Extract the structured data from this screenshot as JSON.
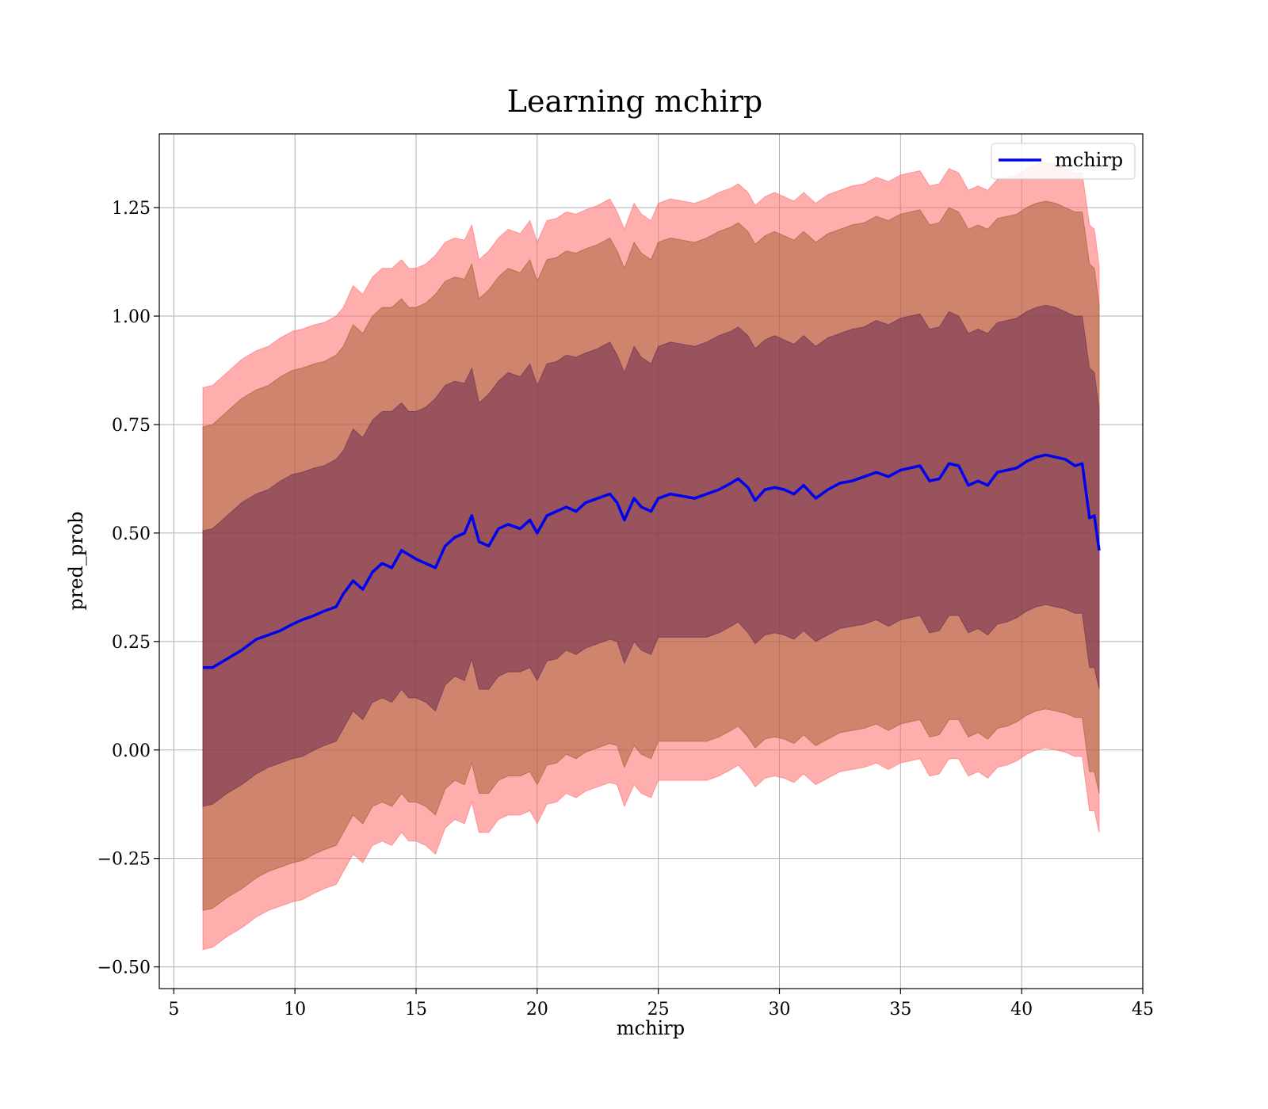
{
  "chart_data": {
    "type": "line",
    "title": "Learning mchirp",
    "xlabel": "mchirp",
    "ylabel": "pred_prob",
    "xlim": [
      4.4,
      45.0
    ],
    "ylim": [
      -0.55,
      1.42
    ],
    "xticks": [
      5,
      10,
      15,
      20,
      25,
      30,
      35,
      40,
      45
    ],
    "yticks": [
      -0.5,
      -0.25,
      0.0,
      0.25,
      0.5,
      0.75,
      1.0,
      1.25
    ],
    "ytick_labels": [
      "−0.50",
      "−0.25",
      "0.00",
      "0.25",
      "0.50",
      "0.75",
      "1.00",
      "1.25"
    ],
    "grid": true,
    "legend": {
      "position": "top-right",
      "entries": [
        "mchirp"
      ]
    },
    "series": [
      {
        "name": "mchirp",
        "color": "#0000ee",
        "x": [
          6.2,
          6.6,
          7.2,
          7.8,
          8.4,
          8.9,
          9.4,
          9.9,
          10.3,
          10.8,
          11.2,
          11.7,
          12.0,
          12.4,
          12.8,
          13.2,
          13.6,
          14.0,
          14.4,
          14.7,
          15.0,
          15.4,
          15.8,
          16.2,
          16.6,
          17.0,
          17.3,
          17.6,
          18.0,
          18.4,
          18.8,
          19.3,
          19.7,
          20.0,
          20.4,
          20.8,
          21.2,
          21.6,
          22.0,
          22.5,
          23.0,
          23.3,
          23.6,
          24.0,
          24.3,
          24.7,
          25.0,
          25.5,
          26.0,
          26.5,
          27.0,
          27.5,
          28.0,
          28.3,
          28.7,
          29.0,
          29.4,
          29.8,
          30.2,
          30.6,
          31.0,
          31.5,
          32.0,
          32.5,
          33.0,
          33.5,
          34.0,
          34.5,
          35.0,
          35.4,
          35.8,
          36.2,
          36.6,
          37.0,
          37.4,
          37.8,
          38.2,
          38.6,
          39.0,
          39.4,
          39.8,
          40.2,
          40.6,
          41.0,
          41.4,
          41.8,
          42.2,
          42.5,
          42.8,
          43.0,
          43.2
        ],
        "y": [
          0.19,
          0.19,
          0.21,
          0.23,
          0.255,
          0.265,
          0.275,
          0.29,
          0.3,
          0.31,
          0.32,
          0.33,
          0.36,
          0.39,
          0.37,
          0.41,
          0.43,
          0.42,
          0.46,
          0.45,
          0.44,
          0.43,
          0.42,
          0.47,
          0.49,
          0.5,
          0.54,
          0.48,
          0.47,
          0.51,
          0.52,
          0.51,
          0.53,
          0.5,
          0.54,
          0.55,
          0.56,
          0.55,
          0.57,
          0.58,
          0.59,
          0.57,
          0.53,
          0.58,
          0.56,
          0.55,
          0.58,
          0.59,
          0.585,
          0.58,
          0.59,
          0.6,
          0.615,
          0.625,
          0.605,
          0.575,
          0.6,
          0.605,
          0.6,
          0.59,
          0.61,
          0.58,
          0.6,
          0.615,
          0.62,
          0.63,
          0.64,
          0.63,
          0.645,
          0.65,
          0.655,
          0.62,
          0.625,
          0.66,
          0.655,
          0.61,
          0.62,
          0.61,
          0.64,
          0.645,
          0.65,
          0.665,
          0.675,
          0.68,
          0.675,
          0.67,
          0.655,
          0.66,
          0.535,
          0.54,
          0.46
        ]
      }
    ],
    "bands": [
      {
        "sigma": 3,
        "color": "#ff6b6b",
        "opacity": 0.55,
        "upper": [
          0.835,
          0.84,
          0.87,
          0.9,
          0.92,
          0.93,
          0.95,
          0.965,
          0.97,
          0.98,
          0.985,
          1.0,
          1.02,
          1.07,
          1.05,
          1.09,
          1.11,
          1.11,
          1.13,
          1.11,
          1.11,
          1.12,
          1.14,
          1.17,
          1.18,
          1.175,
          1.21,
          1.13,
          1.15,
          1.18,
          1.2,
          1.19,
          1.22,
          1.17,
          1.22,
          1.225,
          1.24,
          1.235,
          1.245,
          1.255,
          1.27,
          1.24,
          1.2,
          1.26,
          1.235,
          1.22,
          1.26,
          1.27,
          1.265,
          1.26,
          1.27,
          1.285,
          1.295,
          1.305,
          1.285,
          1.255,
          1.275,
          1.285,
          1.275,
          1.265,
          1.285,
          1.26,
          1.28,
          1.29,
          1.3,
          1.305,
          1.32,
          1.31,
          1.325,
          1.33,
          1.335,
          1.3,
          1.305,
          1.34,
          1.33,
          1.29,
          1.3,
          1.29,
          1.315,
          1.32,
          1.325,
          1.34,
          1.35,
          1.355,
          1.35,
          1.34,
          1.33,
          1.33,
          1.21,
          1.2,
          1.115
        ],
        "lower": [
          -0.46,
          -0.455,
          -0.43,
          -0.41,
          -0.385,
          -0.37,
          -0.36,
          -0.35,
          -0.345,
          -0.33,
          -0.32,
          -0.31,
          -0.28,
          -0.24,
          -0.26,
          -0.22,
          -0.21,
          -0.22,
          -0.19,
          -0.21,
          -0.21,
          -0.22,
          -0.24,
          -0.18,
          -0.16,
          -0.17,
          -0.12,
          -0.19,
          -0.19,
          -0.16,
          -0.15,
          -0.15,
          -0.14,
          -0.17,
          -0.125,
          -0.12,
          -0.1,
          -0.11,
          -0.095,
          -0.085,
          -0.075,
          -0.08,
          -0.13,
          -0.08,
          -0.1,
          -0.11,
          -0.07,
          -0.07,
          -0.07,
          -0.07,
          -0.07,
          -0.06,
          -0.045,
          -0.035,
          -0.06,
          -0.085,
          -0.065,
          -0.06,
          -0.065,
          -0.075,
          -0.055,
          -0.08,
          -0.065,
          -0.05,
          -0.045,
          -0.04,
          -0.03,
          -0.045,
          -0.03,
          -0.025,
          -0.02,
          -0.06,
          -0.055,
          -0.02,
          -0.02,
          -0.06,
          -0.05,
          -0.065,
          -0.04,
          -0.035,
          -0.025,
          -0.01,
          0.0,
          0.005,
          0.0,
          -0.005,
          -0.015,
          -0.015,
          -0.14,
          -0.14,
          -0.19
        ]
      },
      {
        "sigma": 2,
        "color": "#a05a2c",
        "opacity": 0.5,
        "upper": [
          0.745,
          0.75,
          0.78,
          0.81,
          0.83,
          0.84,
          0.86,
          0.875,
          0.88,
          0.89,
          0.895,
          0.91,
          0.93,
          0.98,
          0.96,
          1.0,
          1.02,
          1.02,
          1.04,
          1.02,
          1.02,
          1.03,
          1.05,
          1.08,
          1.09,
          1.085,
          1.12,
          1.04,
          1.06,
          1.09,
          1.11,
          1.1,
          1.13,
          1.08,
          1.13,
          1.135,
          1.15,
          1.145,
          1.155,
          1.165,
          1.18,
          1.15,
          1.11,
          1.17,
          1.145,
          1.13,
          1.17,
          1.18,
          1.175,
          1.17,
          1.18,
          1.195,
          1.205,
          1.215,
          1.195,
          1.165,
          1.185,
          1.195,
          1.185,
          1.175,
          1.195,
          1.17,
          1.19,
          1.2,
          1.21,
          1.215,
          1.23,
          1.22,
          1.235,
          1.24,
          1.245,
          1.21,
          1.215,
          1.25,
          1.24,
          1.2,
          1.21,
          1.2,
          1.225,
          1.23,
          1.235,
          1.25,
          1.26,
          1.265,
          1.26,
          1.25,
          1.24,
          1.24,
          1.12,
          1.11,
          1.025
        ],
        "lower": [
          -0.37,
          -0.365,
          -0.34,
          -0.32,
          -0.295,
          -0.28,
          -0.27,
          -0.26,
          -0.255,
          -0.24,
          -0.23,
          -0.22,
          -0.19,
          -0.15,
          -0.17,
          -0.13,
          -0.12,
          -0.13,
          -0.1,
          -0.12,
          -0.12,
          -0.13,
          -0.15,
          -0.09,
          -0.07,
          -0.08,
          -0.03,
          -0.1,
          -0.1,
          -0.07,
          -0.06,
          -0.06,
          -0.05,
          -0.08,
          -0.035,
          -0.03,
          -0.01,
          -0.02,
          -0.005,
          0.005,
          0.015,
          0.01,
          -0.04,
          0.01,
          -0.01,
          -0.02,
          0.02,
          0.02,
          0.02,
          0.02,
          0.02,
          0.03,
          0.045,
          0.055,
          0.03,
          0.005,
          0.025,
          0.03,
          0.025,
          0.015,
          0.035,
          0.01,
          0.025,
          0.04,
          0.045,
          0.05,
          0.06,
          0.045,
          0.06,
          0.065,
          0.07,
          0.03,
          0.035,
          0.07,
          0.07,
          0.03,
          0.04,
          0.025,
          0.05,
          0.055,
          0.065,
          0.08,
          0.09,
          0.095,
          0.09,
          0.085,
          0.075,
          0.075,
          -0.05,
          -0.05,
          -0.1
        ]
      },
      {
        "sigma": 1,
        "color": "#6b2c50",
        "opacity": 0.55,
        "upper": [
          0.505,
          0.51,
          0.54,
          0.57,
          0.59,
          0.6,
          0.62,
          0.635,
          0.64,
          0.65,
          0.655,
          0.67,
          0.69,
          0.74,
          0.72,
          0.76,
          0.78,
          0.78,
          0.8,
          0.78,
          0.78,
          0.79,
          0.81,
          0.84,
          0.85,
          0.845,
          0.88,
          0.8,
          0.82,
          0.85,
          0.87,
          0.86,
          0.89,
          0.84,
          0.89,
          0.895,
          0.91,
          0.905,
          0.915,
          0.925,
          0.94,
          0.91,
          0.87,
          0.93,
          0.905,
          0.89,
          0.93,
          0.94,
          0.935,
          0.93,
          0.94,
          0.955,
          0.965,
          0.975,
          0.955,
          0.925,
          0.945,
          0.955,
          0.945,
          0.935,
          0.955,
          0.93,
          0.95,
          0.96,
          0.97,
          0.975,
          0.99,
          0.98,
          0.995,
          1.0,
          1.005,
          0.97,
          0.975,
          1.01,
          1.0,
          0.96,
          0.97,
          0.96,
          0.985,
          0.99,
          0.995,
          1.01,
          1.02,
          1.025,
          1.02,
          1.01,
          1.0,
          1.0,
          0.88,
          0.87,
          0.785
        ],
        "lower": [
          -0.13,
          -0.125,
          -0.1,
          -0.08,
          -0.055,
          -0.04,
          -0.03,
          -0.02,
          -0.015,
          0.0,
          0.01,
          0.02,
          0.05,
          0.09,
          0.07,
          0.11,
          0.12,
          0.11,
          0.14,
          0.12,
          0.12,
          0.11,
          0.09,
          0.15,
          0.17,
          0.16,
          0.21,
          0.14,
          0.14,
          0.17,
          0.18,
          0.18,
          0.19,
          0.16,
          0.205,
          0.21,
          0.23,
          0.22,
          0.235,
          0.245,
          0.255,
          0.25,
          0.2,
          0.25,
          0.23,
          0.22,
          0.26,
          0.26,
          0.26,
          0.26,
          0.26,
          0.27,
          0.285,
          0.295,
          0.27,
          0.245,
          0.265,
          0.27,
          0.265,
          0.255,
          0.275,
          0.25,
          0.265,
          0.28,
          0.285,
          0.29,
          0.3,
          0.285,
          0.3,
          0.305,
          0.31,
          0.27,
          0.275,
          0.31,
          0.31,
          0.27,
          0.28,
          0.265,
          0.29,
          0.295,
          0.305,
          0.32,
          0.33,
          0.335,
          0.33,
          0.325,
          0.315,
          0.315,
          0.19,
          0.19,
          0.14
        ]
      }
    ]
  }
}
